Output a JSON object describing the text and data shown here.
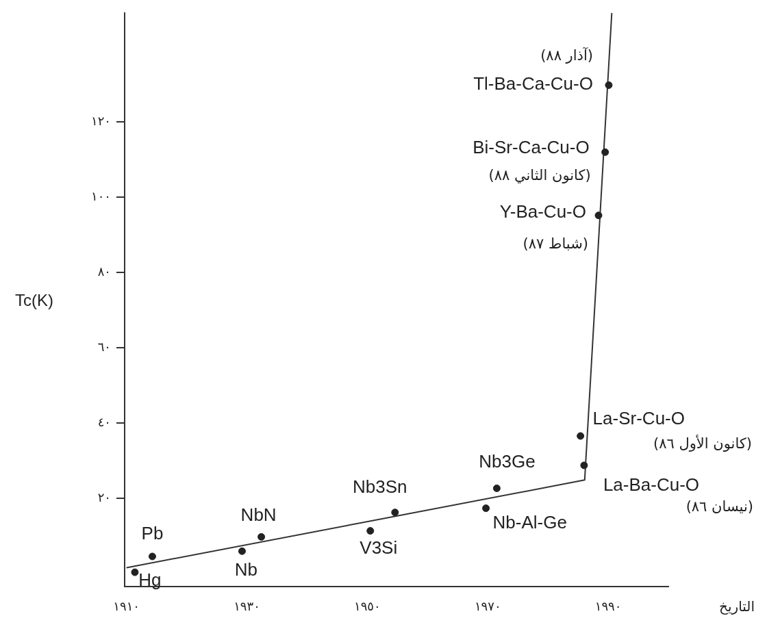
{
  "chart_data": {
    "type": "scatter",
    "xlabel": "التاريخ",
    "ylabel": "Tc(K)",
    "xlim": [
      1909.7,
      2000
    ],
    "ylim": [
      -3.4,
      149
    ],
    "xticks": [
      {
        "value": 1910,
        "label": "١٩١٠"
      },
      {
        "value": 1930,
        "label": "١٩٣٠"
      },
      {
        "value": 1950,
        "label": "١٩٥٠"
      },
      {
        "value": 1970,
        "label": "١٩٧٠"
      },
      {
        "value": 1990,
        "label": "١٩٩٠"
      }
    ],
    "yticks": [
      {
        "value": 20,
        "label": "٢٠"
      },
      {
        "value": 40,
        "label": "٤٠"
      },
      {
        "value": 60,
        "label": "٦٠"
      },
      {
        "value": 80,
        "label": "٨٠"
      },
      {
        "value": 100,
        "label": "١٠٠"
      },
      {
        "value": 120,
        "label": "١٢٠"
      }
    ],
    "grid": false,
    "legend": false,
    "marker": "circle",
    "series": [
      {
        "type": "scatter",
        "color": "#222222",
        "x": [
          1911.4,
          1914.3,
          1929.2,
          1932.4,
          1950.5,
          1954.6,
          1969.7,
          1971.5,
          1986,
          1985.4,
          1988.4,
          1989.5,
          1990.1
        ],
        "values": [
          0.4,
          4.6,
          6,
          9.8,
          11.4,
          16.3,
          17.4,
          22.7,
          28.8,
          36.6,
          95.2,
          112,
          129.8
        ]
      },
      {
        "type": "line",
        "color": "#333333",
        "marker": "none",
        "line_style": "solid",
        "x": [
          1910,
          1986.1,
          1990.6
        ],
        "values": [
          1.6,
          24.9,
          149
        ]
      }
    ],
    "annotations": [
      {
        "text": "Hg",
        "x": 1911.4,
        "y": 0.4
      },
      {
        "text": "Pb",
        "x": 1914.3,
        "y": 4.6
      },
      {
        "text": "Nb",
        "x": 1929.2,
        "y": 6
      },
      {
        "text": "NbN",
        "x": 1932.4,
        "y": 9.8
      },
      {
        "text": "V3Si",
        "x": 1950.5,
        "y": 11.4
      },
      {
        "text": "Nb3Sn",
        "x": 1954.6,
        "y": 16.3
      },
      {
        "text": "Nb-Al-Ge",
        "x": 1969.7,
        "y": 17.4
      },
      {
        "text": "Nb3Ge",
        "x": 1971.5,
        "y": 22.7
      },
      {
        "text": "La-Ba-Cu-O",
        "x": 1986,
        "y": 28.8
      },
      "(نيسان ٨٦)",
      {
        "text": "La-Sr-Cu-O",
        "x": 1985.4,
        "y": 36.6
      },
      "(كانون الأول ٨٦)",
      {
        "text": "Y-Ba-Cu-O",
        "x": 1988.4,
        "y": 95.2
      },
      {
        "text": "(شباط ٨٧)",
        "x": 1988.4,
        "y": 95.2
      },
      {
        "text": "Bi-Sr-Ca-Cu-O",
        "x": 1989.5,
        "y": 112
      },
      {
        "text": "(كانون الثاني ٨٨)",
        "x": 1989.5,
        "y": 112
      },
      {
        "text": "Tl-Ba-Ca-Cu-O",
        "x": 1990.1,
        "y": 129.8
      },
      {
        "text": "(آذار ٨٨)",
        "x": 1990.1,
        "y": 129.8
      }
    ]
  }
}
